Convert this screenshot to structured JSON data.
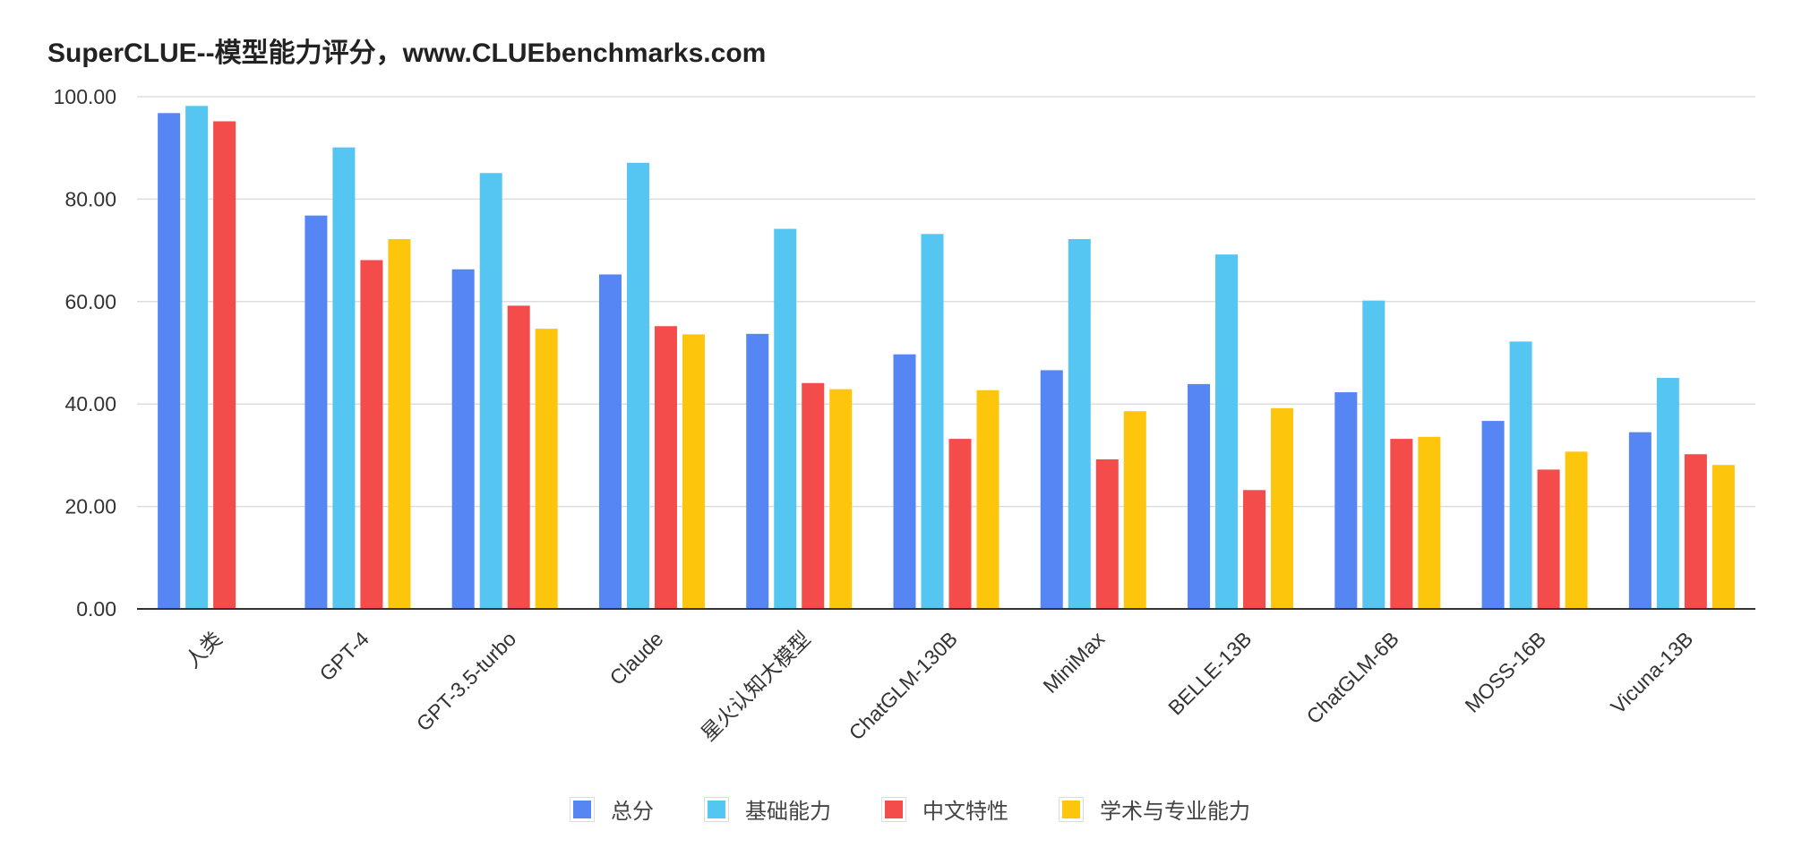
{
  "chart_data": {
    "type": "bar",
    "title": "SuperCLUE--模型能力评分，www.CLUEbenchmarks.com",
    "xlabel": "",
    "ylabel": "",
    "ylim": [
      0,
      100
    ],
    "yticks": [
      "0.00",
      "20.00",
      "40.00",
      "60.00",
      "80.00",
      "100.00"
    ],
    "grid": true,
    "legend_position": "bottom",
    "categories": [
      "人类",
      "GPT-4",
      "GPT-3.5-turbo",
      "Claude",
      "星火认知大模型",
      "ChatGLM-130B",
      "MiniMax",
      "BELLE-13B",
      "ChatGLM-6B",
      "MOSS-16B",
      "Vicuna-13B"
    ],
    "series": [
      {
        "name": "总分",
        "color": "#5586F3",
        "values": [
          96.8,
          76.8,
          66.3,
          65.3,
          53.7,
          49.7,
          46.6,
          43.9,
          42.3,
          36.7,
          34.5
        ]
      },
      {
        "name": "基础能力",
        "color": "#55C6F2",
        "values": [
          98.2,
          90.1,
          85.1,
          87.1,
          74.2,
          73.2,
          72.2,
          69.2,
          60.2,
          52.2,
          45.1
        ]
      },
      {
        "name": "中文特性",
        "color": "#F44B4B",
        "values": [
          95.2,
          68.1,
          59.2,
          55.2,
          44.1,
          33.2,
          29.2,
          23.2,
          33.2,
          27.2,
          30.2
        ]
      },
      {
        "name": "学术与专业能力",
        "color": "#FDC50C",
        "values": [
          null,
          72.2,
          54.7,
          53.6,
          42.9,
          42.7,
          38.6,
          39.2,
          33.6,
          30.7,
          28.1
        ]
      }
    ]
  }
}
